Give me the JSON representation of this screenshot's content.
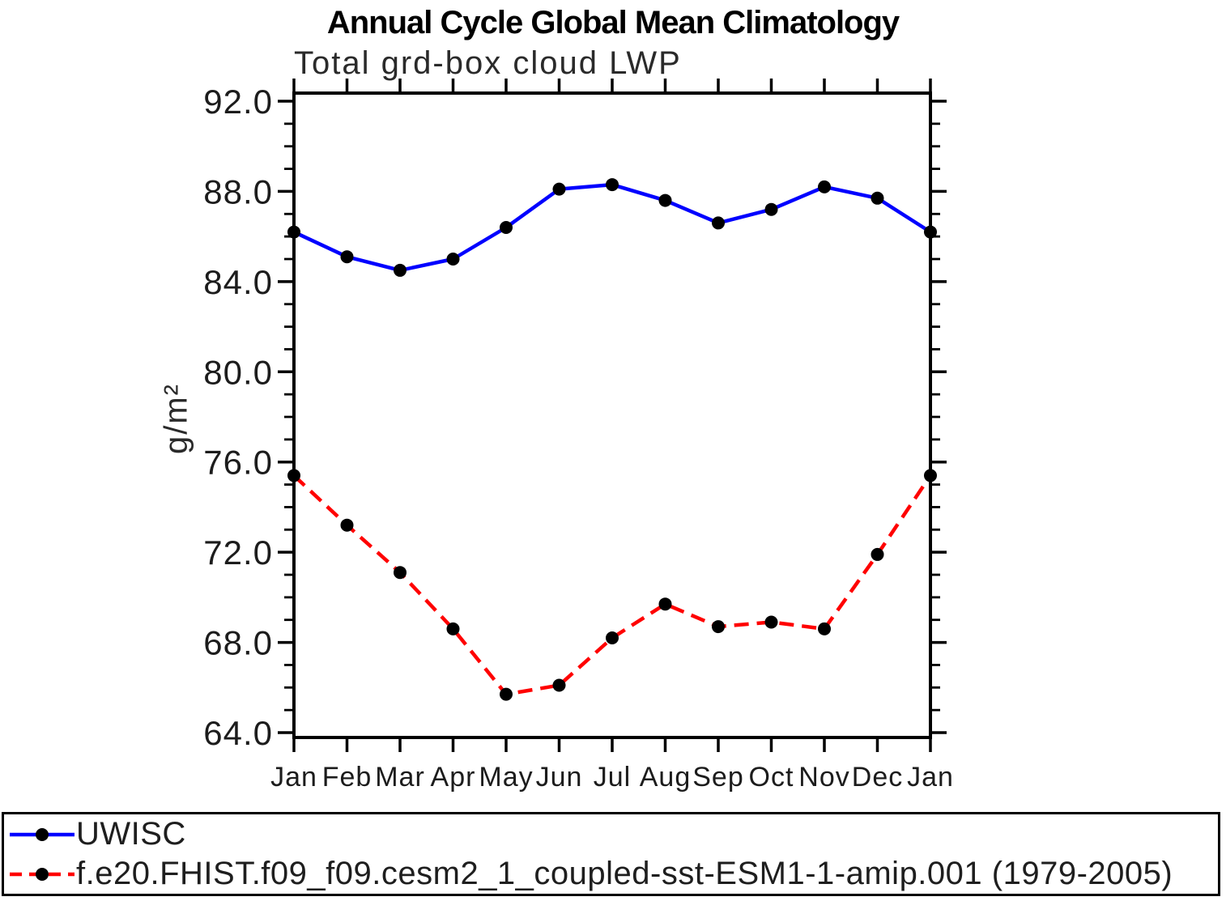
{
  "chart_data": {
    "type": "line",
    "title": "Annual Cycle Global Mean Climatology",
    "subtitle": "Total grd-box cloud LWP",
    "ylabel": "g/m²",
    "xlabel": "",
    "x_categories": [
      "Jan",
      "Feb",
      "Mar",
      "Apr",
      "May",
      "Jun",
      "Jul",
      "Aug",
      "Sep",
      "Oct",
      "Nov",
      "Dec",
      "Jan"
    ],
    "ylim": [
      63.8,
      92.4
    ],
    "yticks_major": [
      64,
      68,
      72,
      76,
      80,
      84,
      88,
      92
    ],
    "ytick_labels": [
      "64.0",
      "68.0",
      "72.0",
      "76.0",
      "80.0",
      "84.0",
      "88.0",
      "92.0"
    ],
    "minor_tick_interval": 1,
    "grid": false,
    "legend_position": "bottom-box",
    "frame_color": "#000000",
    "series": [
      {
        "name": "UWISC",
        "color": "#0000ff",
        "line_style": "solid",
        "marker": "circle",
        "marker_color": "#000000",
        "values": [
          86.2,
          85.1,
          84.5,
          85.0,
          86.4,
          88.1,
          88.3,
          87.6,
          86.6,
          87.2,
          88.2,
          87.7,
          86.2
        ]
      },
      {
        "name": "f.e20.FHIST.f09_f09.cesm2_1_coupled-sst-ESM1-1-amip.001 (1979-2005)",
        "color": "#ff0000",
        "line_style": "dashed",
        "marker": "circle",
        "marker_color": "#000000",
        "values": [
          75.4,
          73.2,
          71.1,
          68.6,
          65.7,
          66.1,
          68.2,
          69.7,
          68.7,
          68.9,
          68.6,
          71.9,
          75.4
        ]
      }
    ]
  }
}
